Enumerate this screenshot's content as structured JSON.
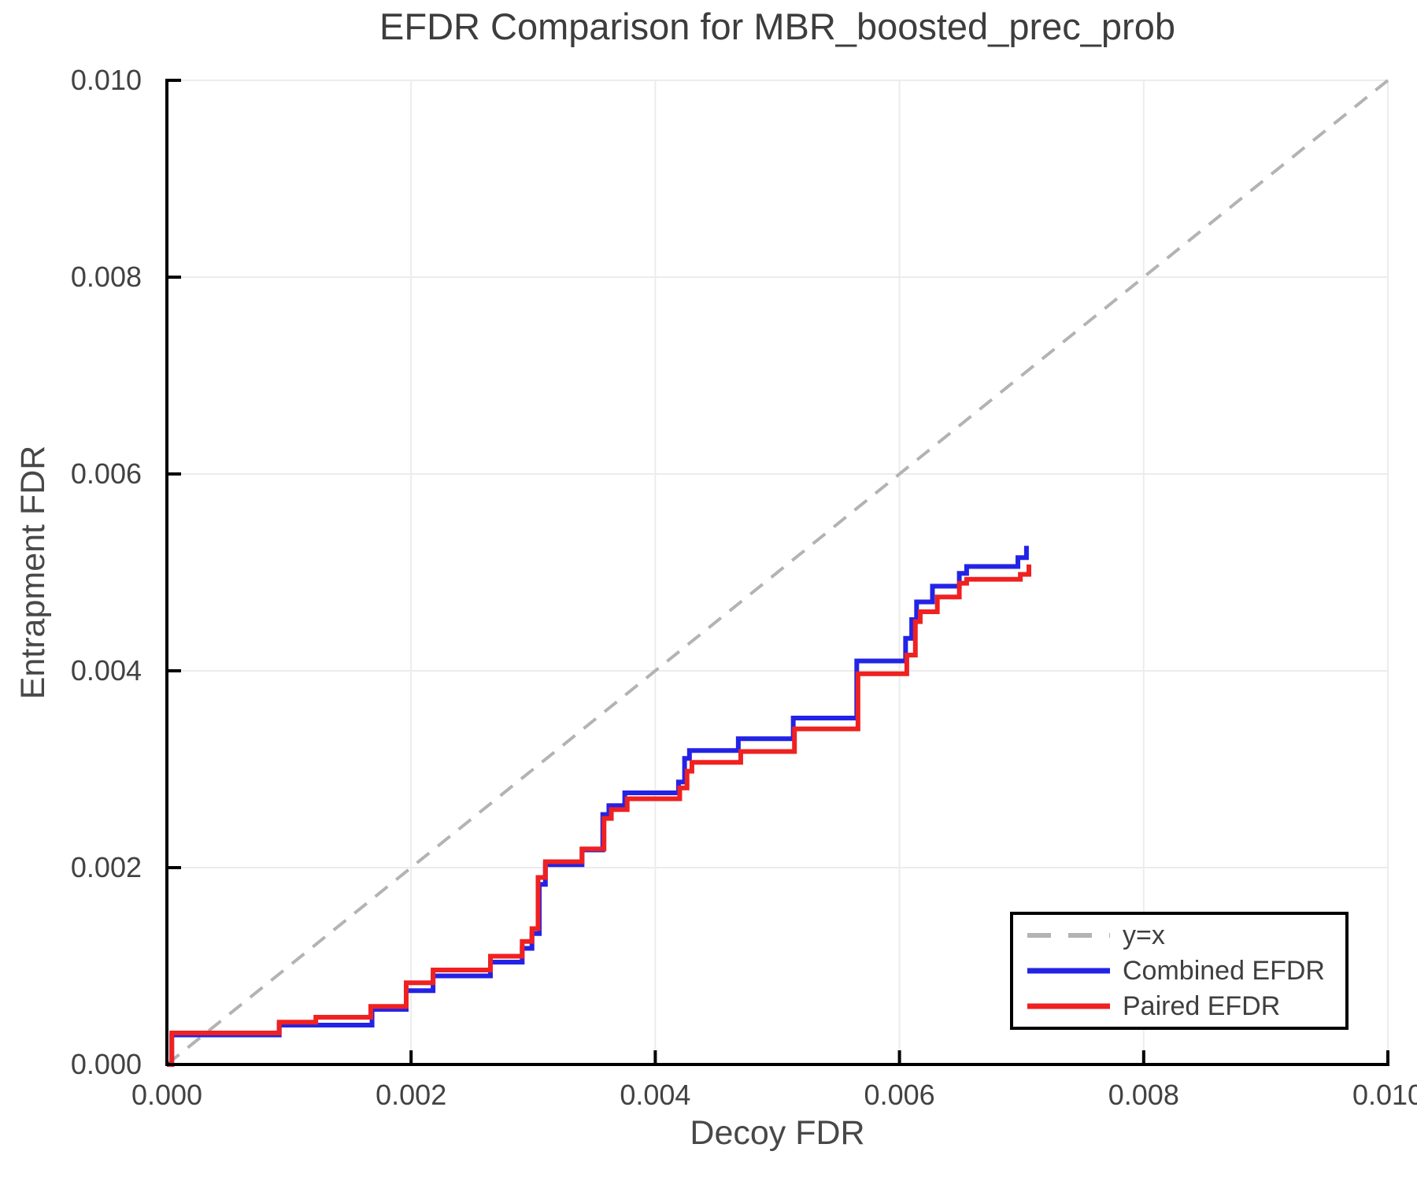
{
  "title": "EFDR Comparison for MBR_boosted_prec_prob",
  "colors": {
    "identity_line": "#b3b3b3",
    "combined_efdr": "#2323e6",
    "paired_efdr": "#ef2121",
    "grid": "#ececec",
    "spine": "#000000",
    "text": "#3d3d3d"
  },
  "legend": {
    "entries": [
      {
        "label": "y=x",
        "style": "dashed",
        "color": "#b3b3b3"
      },
      {
        "label": "Combined EFDR",
        "style": "solid",
        "color": "#2323e6"
      },
      {
        "label": "Paired EFDR",
        "style": "solid",
        "color": "#ef2121"
      }
    ],
    "position": "lower right"
  },
  "chart_data": {
    "type": "line",
    "title": "EFDR Comparison for MBR_boosted_prec_prob",
    "xlabel": "Decoy FDR",
    "ylabel": "Entrapment FDR",
    "xlim": [
      0.0,
      0.01
    ],
    "ylim": [
      0.0,
      0.01
    ],
    "x_ticks": [
      0.0,
      0.002,
      0.004,
      0.006,
      0.008,
      0.01
    ],
    "y_ticks": [
      0.0,
      0.002,
      0.004,
      0.006,
      0.008,
      0.01
    ],
    "tick_format_labels": [
      "0.000",
      "0.002",
      "0.004",
      "0.006",
      "0.008",
      "0.010"
    ],
    "grid": true,
    "series": [
      {
        "name": "y=x",
        "mode": "line",
        "dashed": true,
        "color": "#b3b3b3",
        "points": [
          [
            0.0,
            0.0
          ],
          [
            0.01,
            0.01
          ]
        ]
      },
      {
        "name": "Combined EFDR",
        "mode": "step",
        "dashed": false,
        "color": "#2323e6",
        "points": [
          [
            0.0,
            0.0
          ],
          [
            4e-05,
            0.0003
          ],
          [
            0.00092,
            0.0004
          ],
          [
            0.00168,
            0.00056
          ],
          [
            0.00196,
            0.00075
          ],
          [
            0.00218,
            0.0009
          ],
          [
            0.00265,
            0.00104
          ],
          [
            0.00291,
            0.00118
          ],
          [
            0.00299,
            0.00133
          ],
          [
            0.00305,
            0.00183
          ],
          [
            0.0031,
            0.00203
          ],
          [
            0.0034,
            0.00218
          ],
          [
            0.00357,
            0.00254
          ],
          [
            0.00362,
            0.00263
          ],
          [
            0.00375,
            0.00276
          ],
          [
            0.00419,
            0.00287
          ],
          [
            0.00424,
            0.00311
          ],
          [
            0.00428,
            0.00319
          ],
          [
            0.00468,
            0.00331
          ],
          [
            0.00513,
            0.00352
          ],
          [
            0.00565,
            0.0041
          ],
          [
            0.00605,
            0.00433
          ],
          [
            0.0061,
            0.00452
          ],
          [
            0.00614,
            0.0047
          ],
          [
            0.00627,
            0.00486
          ],
          [
            0.00649,
            0.00499
          ],
          [
            0.00655,
            0.00506
          ],
          [
            0.00697,
            0.00515
          ],
          [
            0.00704,
            0.00527
          ]
        ]
      },
      {
        "name": "Paired EFDR",
        "mode": "step",
        "dashed": false,
        "color": "#ef2121",
        "points": [
          [
            0.0,
            0.0
          ],
          [
            4e-05,
            0.00032
          ],
          [
            0.00092,
            0.00043
          ],
          [
            0.00122,
            0.00048
          ],
          [
            0.00167,
            0.00059
          ],
          [
            0.00196,
            0.00083
          ],
          [
            0.00218,
            0.00096
          ],
          [
            0.00265,
            0.0011
          ],
          [
            0.00291,
            0.00125
          ],
          [
            0.00299,
            0.00138
          ],
          [
            0.00304,
            0.0019
          ],
          [
            0.0031,
            0.00206
          ],
          [
            0.0034,
            0.00219
          ],
          [
            0.00358,
            0.0025
          ],
          [
            0.00364,
            0.00259
          ],
          [
            0.00377,
            0.0027
          ],
          [
            0.0042,
            0.00281
          ],
          [
            0.00426,
            0.00298
          ],
          [
            0.0043,
            0.00307
          ],
          [
            0.0047,
            0.00318
          ],
          [
            0.00514,
            0.00341
          ],
          [
            0.00566,
            0.00397
          ],
          [
            0.00606,
            0.00416
          ],
          [
            0.00613,
            0.0045
          ],
          [
            0.00617,
            0.0046
          ],
          [
            0.00631,
            0.00475
          ],
          [
            0.00649,
            0.00489
          ],
          [
            0.00655,
            0.00493
          ],
          [
            0.00699,
            0.00498
          ],
          [
            0.00706,
            0.00508
          ]
        ]
      }
    ]
  }
}
